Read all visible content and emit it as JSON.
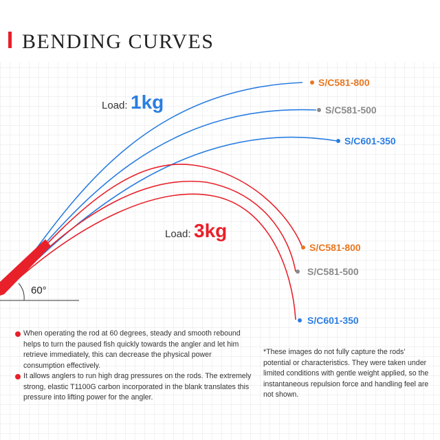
{
  "header": {
    "title": "BENDING CURVES"
  },
  "groups": [
    {
      "load_label": "Load:",
      "load": "1kg",
      "curves": [
        "S/C581-800",
        "S/C581-500",
        "S/C601-350"
      ]
    },
    {
      "load_label": "Load:",
      "load": "3kg",
      "curves": [
        "S/C581-800",
        "S/C581-500",
        "S/C601-350"
      ]
    }
  ],
  "angle": "60°",
  "bullets": [
    "When operating the rod at 60 degrees, steady and smooth rebound helps to turn the paused fish quickly towards the angler and let him retrieve immediately, this can decrease the physical power consumption effectively.",
    "It allows anglers to run high drag pressures on the rods. The extremely strong, elastic T1100G carbon incorporated in the blank translates this pressure into lifting power for the angler."
  ],
  "note": "*These images do not fully capture the rods' potential or characteristics. They were taken under limited conditions with gentle weight applied, so the instantaneous repulsion force and handling feel are not shown."
}
